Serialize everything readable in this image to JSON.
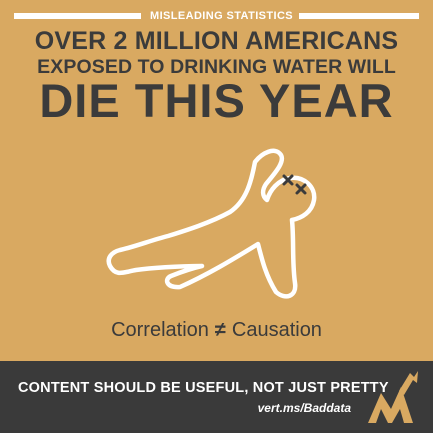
{
  "header": {
    "kicker": "MISLEADING STATISTICS",
    "line1": "OVER 2 MILLION AMERICANS",
    "line2": "EXPOSED TO DRINKING WATER WILL",
    "line3": "DIE THIS YEAR"
  },
  "illustration": {
    "icon": "chalk-outline-body-icon",
    "eyes": "x-eyes-icon"
  },
  "caption": {
    "left": "Correlation",
    "symbol": "≠",
    "right": "Causation"
  },
  "footer": {
    "tagline": "CONTENT SHOULD BE USEFUL, NOT JUST PRETTY",
    "url": "vert.ms/Baddata",
    "logo_icon": "vertical-measures-logo-icon"
  },
  "colors": {
    "background": "#d9a961",
    "text": "#3b3b3b",
    "footer": "#3a3a3a",
    "outline": "#ffffff"
  }
}
